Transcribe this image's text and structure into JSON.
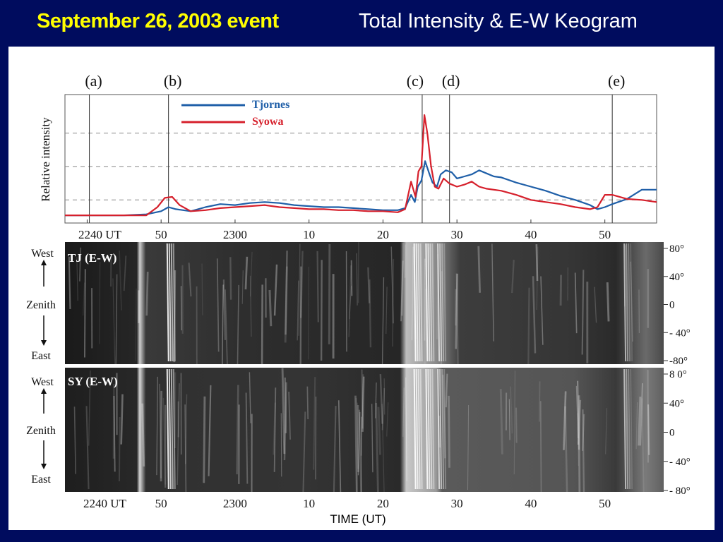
{
  "header": {
    "event_title": "September 26, 2003 event",
    "subtitle": "Total Intensity & E-W Keogram"
  },
  "colors": {
    "background": "#000c5e",
    "title_yellow": "#ffff00",
    "tjornes": "#1f5fa8",
    "syowa": "#d6202c"
  },
  "chart_data": [
    {
      "type": "line",
      "ylabel": "Relative intensity",
      "xlabel": "",
      "x_unit": "minutes after 22:40 UT",
      "xlim": [
        -3,
        77
      ],
      "ylim": [
        0,
        1
      ],
      "grid": "horizontal dashed",
      "x_ticks": [
        {
          "value": 0,
          "label": "2240 UT"
        },
        {
          "value": 10,
          "label": "50"
        },
        {
          "value": 20,
          "label": "2300"
        },
        {
          "value": 30,
          "label": "10"
        },
        {
          "value": 40,
          "label": "20"
        },
        {
          "value": 50,
          "label": "30"
        },
        {
          "value": 60,
          "label": "40"
        },
        {
          "value": 70,
          "label": "50"
        }
      ],
      "markers": [
        {
          "label": "(a)",
          "x": 0.3
        },
        {
          "label": "(b)",
          "x": 11.0
        },
        {
          "label": "(c)",
          "x": 45.3
        },
        {
          "label": "(d)",
          "x": 49.0
        },
        {
          "label": "(e)",
          "x": 71.0
        }
      ],
      "legend_position": "top-left",
      "series": [
        {
          "name": "Tjornes",
          "color": "#1f5fa8",
          "points": [
            [
              -3,
              0.02
            ],
            [
              5,
              0.02
            ],
            [
              8,
              0.03
            ],
            [
              10,
              0.06
            ],
            [
              11,
              0.1
            ],
            [
              12,
              0.08
            ],
            [
              14,
              0.06
            ],
            [
              16,
              0.1
            ],
            [
              18,
              0.13
            ],
            [
              20,
              0.12
            ],
            [
              22,
              0.14
            ],
            [
              24,
              0.15
            ],
            [
              26,
              0.14
            ],
            [
              28,
              0.12
            ],
            [
              30,
              0.11
            ],
            [
              32,
              0.1
            ],
            [
              34,
              0.1
            ],
            [
              36,
              0.09
            ],
            [
              38,
              0.08
            ],
            [
              40,
              0.07
            ],
            [
              42,
              0.07
            ],
            [
              43,
              0.09
            ],
            [
              43.8,
              0.22
            ],
            [
              44.3,
              0.15
            ],
            [
              44.7,
              0.3
            ],
            [
              45.2,
              0.36
            ],
            [
              45.7,
              0.55
            ],
            [
              46.2,
              0.44
            ],
            [
              46.7,
              0.34
            ],
            [
              47.3,
              0.3
            ],
            [
              47.8,
              0.42
            ],
            [
              48.5,
              0.46
            ],
            [
              49.3,
              0.44
            ],
            [
              50,
              0.38
            ],
            [
              51,
              0.4
            ],
            [
              52,
              0.42
            ],
            [
              53,
              0.46
            ],
            [
              54,
              0.43
            ],
            [
              55,
              0.4
            ],
            [
              56,
              0.39
            ],
            [
              58,
              0.34
            ],
            [
              60,
              0.3
            ],
            [
              62,
              0.26
            ],
            [
              64,
              0.21
            ],
            [
              66,
              0.17
            ],
            [
              68,
              0.12
            ],
            [
              69,
              0.08
            ],
            [
              70,
              0.1
            ],
            [
              71,
              0.13
            ],
            [
              73,
              0.18
            ],
            [
              75,
              0.27
            ],
            [
              77,
              0.27
            ]
          ]
        },
        {
          "name": "Syowa",
          "color": "#d6202c",
          "points": [
            [
              -3,
              0.02
            ],
            [
              8,
              0.02
            ],
            [
              9.5,
              0.1
            ],
            [
              10.5,
              0.19
            ],
            [
              11.5,
              0.2
            ],
            [
              12.5,
              0.12
            ],
            [
              14,
              0.06
            ],
            [
              16,
              0.07
            ],
            [
              18,
              0.09
            ],
            [
              20,
              0.1
            ],
            [
              22,
              0.11
            ],
            [
              24,
              0.12
            ],
            [
              26,
              0.1
            ],
            [
              28,
              0.09
            ],
            [
              30,
              0.08
            ],
            [
              32,
              0.08
            ],
            [
              34,
              0.07
            ],
            [
              36,
              0.07
            ],
            [
              38,
              0.06
            ],
            [
              40,
              0.06
            ],
            [
              42,
              0.05
            ],
            [
              43,
              0.08
            ],
            [
              43.8,
              0.35
            ],
            [
              44.4,
              0.2
            ],
            [
              44.8,
              0.45
            ],
            [
              45.2,
              0.5
            ],
            [
              45.6,
              1.0
            ],
            [
              46.0,
              0.82
            ],
            [
              46.5,
              0.5
            ],
            [
              47,
              0.3
            ],
            [
              47.5,
              0.28
            ],
            [
              48.2,
              0.38
            ],
            [
              49,
              0.33
            ],
            [
              50,
              0.3
            ],
            [
              51,
              0.32
            ],
            [
              52,
              0.35
            ],
            [
              53,
              0.3
            ],
            [
              54,
              0.28
            ],
            [
              56,
              0.26
            ],
            [
              58,
              0.22
            ],
            [
              60,
              0.17
            ],
            [
              62,
              0.15
            ],
            [
              64,
              0.13
            ],
            [
              66,
              0.1
            ],
            [
              68,
              0.08
            ],
            [
              69,
              0.1
            ],
            [
              70,
              0.22
            ],
            [
              71,
              0.22
            ],
            [
              73,
              0.18
            ],
            [
              75,
              0.17
            ],
            [
              77,
              0.15
            ]
          ]
        }
      ]
    },
    {
      "type": "heatmap",
      "panel_label": "TJ (E-W)",
      "y_side_labels": [
        "West",
        "Zenith",
        "East"
      ],
      "y_ticks": [
        "80°",
        "40°",
        "0",
        "- 40°",
        "-80°"
      ],
      "colormap": "grayscale"
    },
    {
      "type": "heatmap",
      "panel_label": "SY (E-W)",
      "y_side_labels": [
        "West",
        "Zenith",
        "East"
      ],
      "y_ticks": [
        "8 0°",
        "40°",
        "0",
        "- 40°",
        "- 80°"
      ],
      "xlabel": "TIME (UT)",
      "x_tick_labels": [
        "2240 UT",
        "50",
        "2300",
        "10",
        "20",
        "30",
        "40",
        "50"
      ],
      "colormap": "grayscale"
    }
  ]
}
